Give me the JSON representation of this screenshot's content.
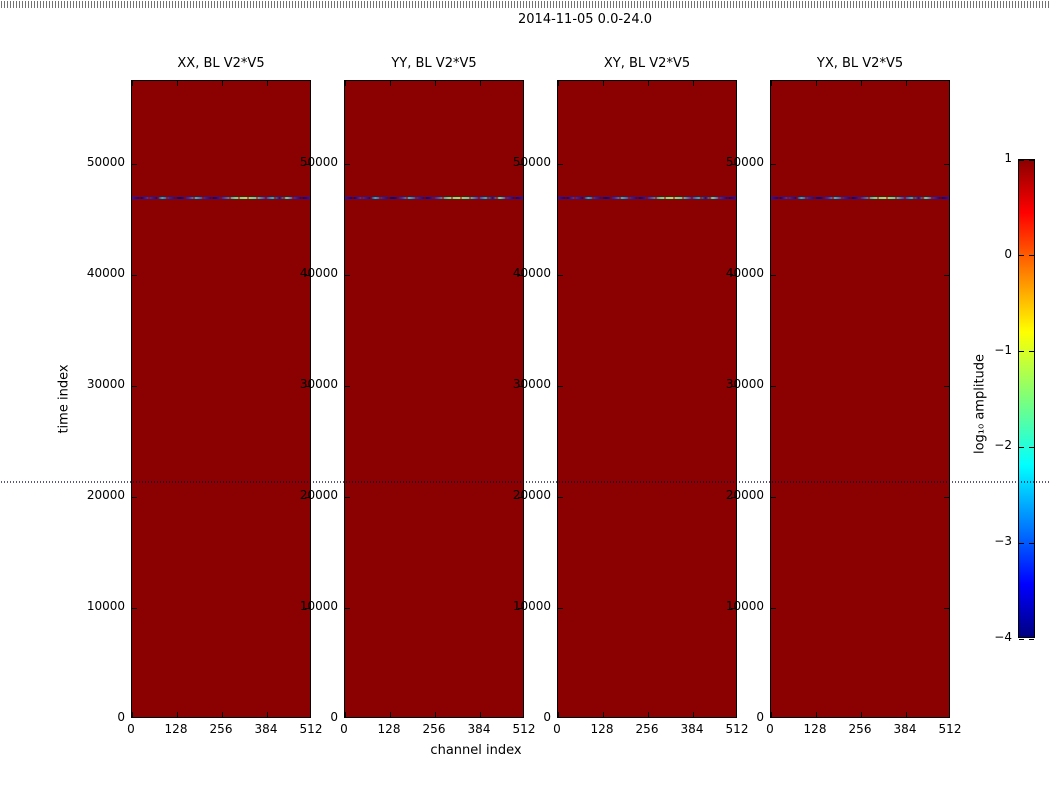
{
  "figure": {
    "title": "2014-11-05 0.0-24.0",
    "xlabel": "channel index",
    "ylabel": "time index",
    "colorbar_label": "log₁₀ amplitude",
    "background_color": "#ffffff"
  },
  "chart_data": {
    "type": "heatmap",
    "title": "2014-11-05 0.0-24.0",
    "xlabel": "channel index",
    "ylabel": "time index",
    "panels": [
      {
        "title": "XX, BL V2*V5"
      },
      {
        "title": "YY, BL V2*V5"
      },
      {
        "title": "XY, BL V2*V5"
      },
      {
        "title": "YX, BL V2*V5"
      }
    ],
    "x": {
      "ticks": [
        0,
        128,
        256,
        384,
        512
      ],
      "range": [
        0,
        512
      ]
    },
    "y": {
      "ticks": [
        0,
        10000,
        20000,
        30000,
        40000,
        50000
      ],
      "range": [
        0,
        57500
      ]
    },
    "colorbar": {
      "label": "log₁₀ amplitude",
      "ticks": [
        1,
        0,
        -1,
        -2,
        -3,
        -4
      ],
      "range": [
        -4,
        1
      ],
      "colormap": "jet",
      "stops": [
        [
          "#000080",
          0
        ],
        [
          "#0000ff",
          11
        ],
        [
          "#00ffff",
          36
        ],
        [
          "#7dff7a",
          50
        ],
        [
          "#ffff00",
          64
        ],
        [
          "#ff0000",
          89
        ],
        [
          "#8b0000",
          100
        ]
      ]
    },
    "background_value": 1,
    "background_color": "#8b0000",
    "rfi_line": {
      "time_index": 47000,
      "approx_value_range": [
        -4,
        -1.5
      ],
      "description": "Narrow dashed horizontal stripe of low amplitude (blue/cyan with green segments) across all four panels at time index ~47000; all other pixels saturated at log10 amplitude = 1 (dark red).",
      "segments": [
        [
          "#1a1ac8",
          0
        ],
        [
          "#000099",
          5
        ],
        [
          "#2b3bd0",
          9
        ],
        [
          "#0b0b9e",
          14
        ],
        [
          "#00bfe8",
          17
        ],
        [
          "#1a2ac0",
          21
        ],
        [
          "#000088",
          27
        ],
        [
          "#2433cc",
          32
        ],
        [
          "#11c4e0",
          36
        ],
        [
          "#1a2ac0",
          41
        ],
        [
          "#000099",
          46
        ],
        [
          "#2433cc",
          51
        ],
        [
          "#44e699",
          58
        ],
        [
          "#7dee7a",
          64
        ],
        [
          "#33ddb0",
          70
        ],
        [
          "#2433cc",
          75
        ],
        [
          "#00c4dd",
          79
        ],
        [
          "#111199",
          83
        ],
        [
          "#44e6bb",
          87
        ],
        [
          "#2433cc",
          91
        ],
        [
          "#000099",
          96
        ],
        [
          "#1a1ac8",
          100
        ]
      ]
    }
  }
}
